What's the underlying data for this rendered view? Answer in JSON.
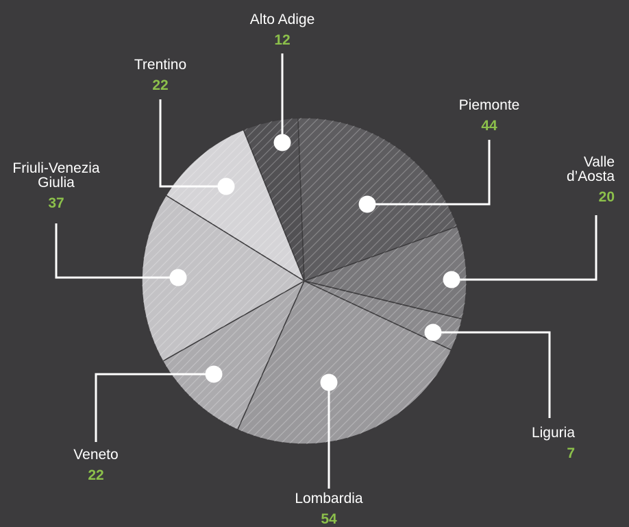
{
  "chart_data": {
    "type": "pie",
    "title": "",
    "categories": [
      "Alto Adige",
      "Piemonte",
      "Valle d’Aosta",
      "Liguria",
      "Lombardia",
      "Veneto",
      "Friuli-Venezia Giulia",
      "Trentino"
    ],
    "labels": [
      [
        "Alto Adige"
      ],
      [
        "Piemonte"
      ],
      [
        "Valle",
        "d’Aosta"
      ],
      [
        "Liguria"
      ],
      [
        "Lombardia"
      ],
      [
        "Veneto"
      ],
      [
        "Friuli-Venezia",
        "Giulia"
      ],
      [
        "Trentino"
      ]
    ],
    "values": [
      12,
      44,
      20,
      7,
      54,
      22,
      37,
      22
    ],
    "slice_shades": [
      "#525154",
      "#5e5d60",
      "#79787b",
      "#8b8a8d",
      "#9a999c",
      "#acabae",
      "#c3c2c5",
      "#d5d4d7"
    ],
    "colors": {
      "background": "#3c3b3d",
      "label_text": "#ffffff",
      "value_text": "#8cc04b",
      "leader": "#ffffff"
    },
    "legend": "none (direct labels with leader lines)"
  }
}
